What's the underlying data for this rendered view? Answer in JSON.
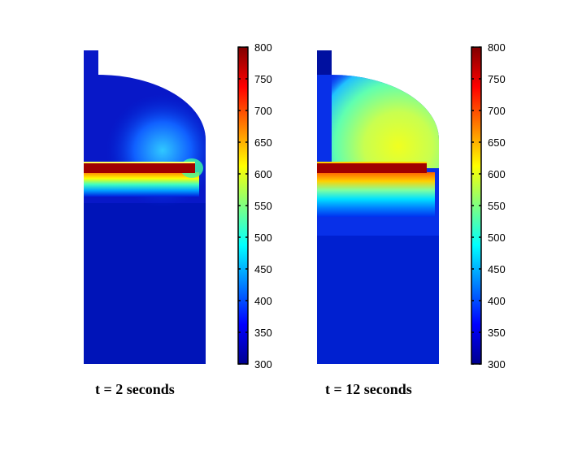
{
  "chart_data": [
    {
      "type": "heatmap",
      "title": "t = 2 seconds",
      "colormap": "jet",
      "colorbar": {
        "min": 300,
        "max": 800,
        "ticks": [
          800,
          750,
          700,
          650,
          600,
          550,
          500,
          450,
          400,
          350,
          300
        ]
      },
      "description_values": {
        "background_temperature": 320,
        "rod_temperature": 790,
        "peak_glow_temperature": 470
      }
    },
    {
      "type": "heatmap",
      "title": "t = 12 seconds",
      "colormap": "jet",
      "colorbar": {
        "min": 300,
        "max": 800,
        "ticks": [
          800,
          750,
          700,
          650,
          600,
          550,
          500,
          450,
          400,
          350,
          300
        ]
      },
      "description_values": {
        "background_temperature": 340,
        "rod_temperature": 790,
        "peak_glow_temperature": 610
      }
    }
  ],
  "colors": {
    "jet0": "#00008f",
    "jet1": "#0000ff",
    "jet2": "#00ffff",
    "jet3": "#ffff00",
    "jet4": "#ff0000",
    "jet5": "#800000"
  }
}
